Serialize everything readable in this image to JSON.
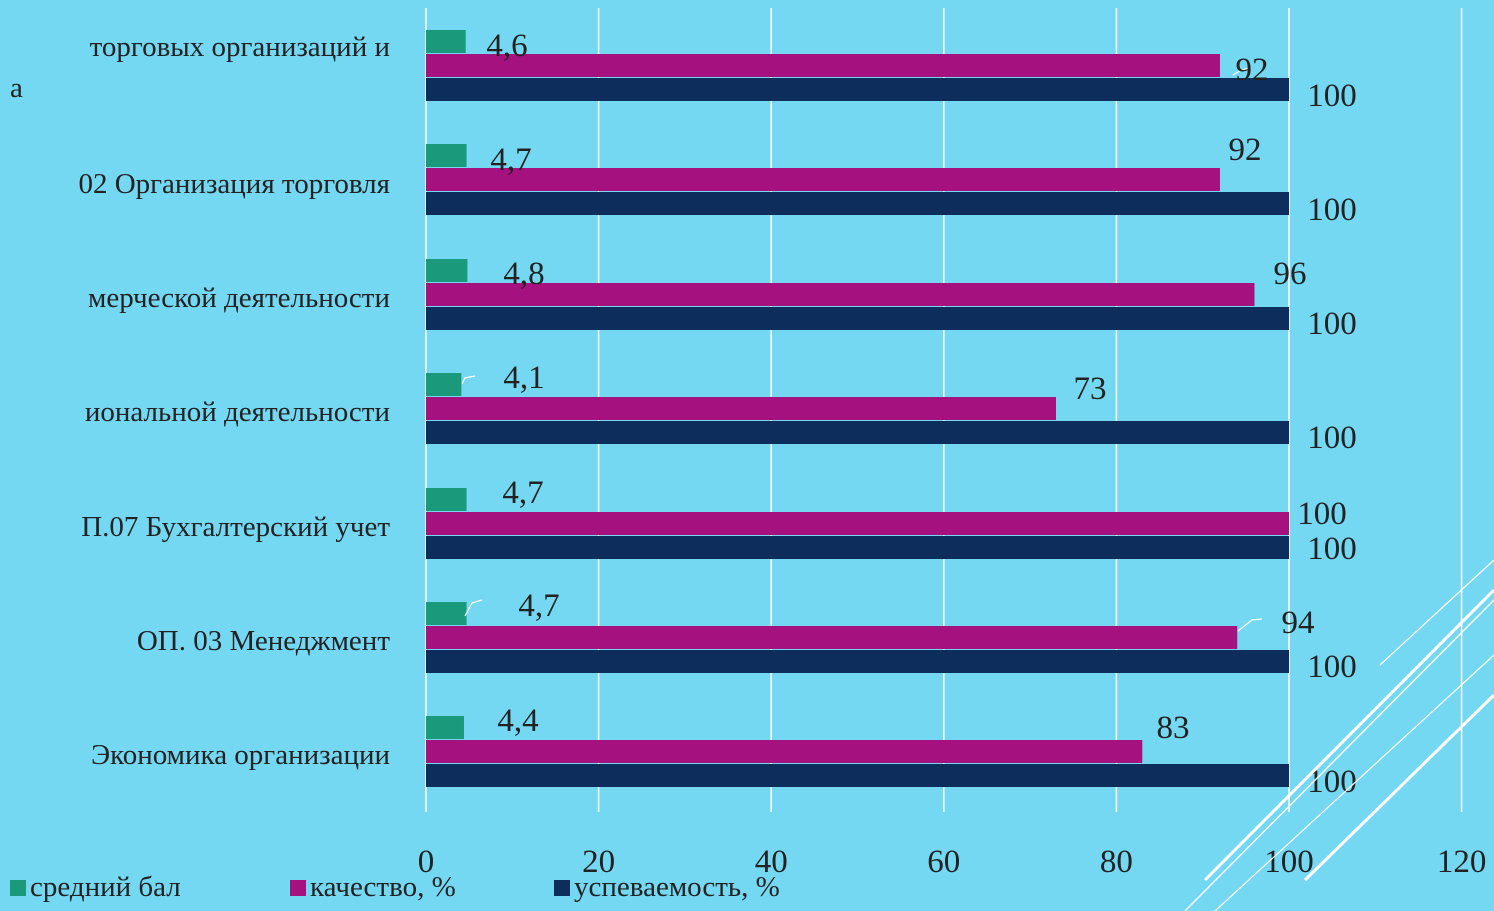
{
  "chart_data": {
    "type": "bar",
    "orientation": "horizontal",
    "categories": [
      "торговых организаций и\nа",
      "02 Организация торговля",
      "мерческой деятельности",
      "иональной деятельности",
      "П.07 Бухгалтерский учет",
      "ОП. 03 Менеджмент",
      "Экономика организации"
    ],
    "series": [
      {
        "name": "средний бал",
        "color": "#1A9A7A",
        "values": [
          4.6,
          4.7,
          4.8,
          4.1,
          4.7,
          4.7,
          4.4
        ],
        "labels": [
          "4,6",
          "4,7",
          "4,8",
          "4,1",
          "4,7",
          "4,7",
          "4,4"
        ]
      },
      {
        "name": "качество, %",
        "color": "#A5117F",
        "values": [
          92,
          92,
          96,
          73,
          100,
          94,
          83
        ],
        "labels": [
          "92",
          "92",
          "96",
          "73",
          "100",
          "94",
          "83"
        ]
      },
      {
        "name": "успеваемость, %",
        "color": "#0D2E5C",
        "values": [
          100,
          100,
          100,
          100,
          100,
          100,
          100
        ],
        "labels": [
          "100",
          "100",
          "100",
          "100",
          "100",
          "100",
          "100"
        ]
      }
    ],
    "xlim": [
      0,
      120
    ],
    "xticks": [
      "0",
      "20",
      "40",
      "60",
      "80",
      "100",
      "120"
    ],
    "grid": true,
    "legend_position": "bottom",
    "background": "#74D8F3"
  }
}
